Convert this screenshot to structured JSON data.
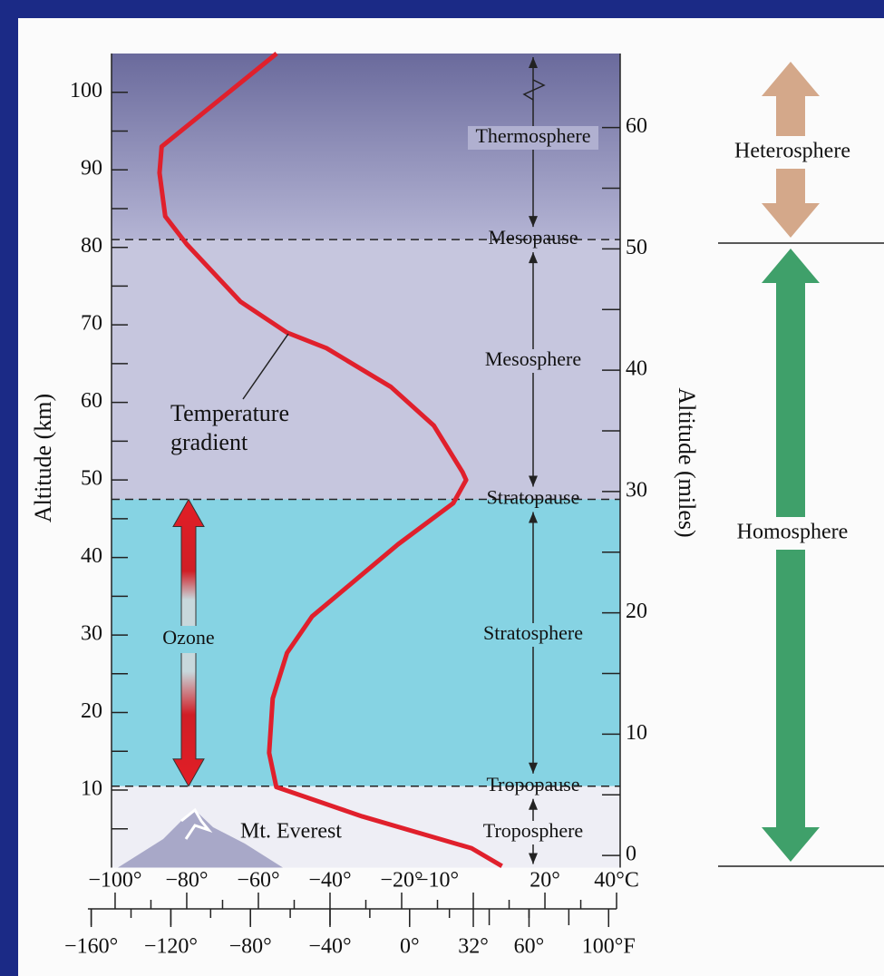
{
  "chart_data": {
    "type": "line",
    "series": [
      {
        "name": "Temperature gradient",
        "color": "#e0202c",
        "x": [
          8,
          -0.5,
          -31,
          -55,
          -57,
          -56,
          -52,
          -45,
          -21,
          -5.6,
          -2,
          -3,
          -11,
          -23,
          -41,
          -52,
          -65,
          -80,
          -86,
          -87.6,
          -87,
          -54.9
        ],
        "values": [
          0.2,
          2.5,
          6.6,
          10.4,
          14.8,
          21.8,
          27.7,
          32.4,
          41.7,
          47,
          50,
          51,
          57,
          62,
          67,
          69,
          73,
          80.4,
          84,
          89.6,
          93,
          105
        ]
      }
    ],
    "xlim": [
      -101,
      41
    ],
    "xticks": [
      {
        "value": -100,
        "label": "−100°"
      },
      {
        "value": -80,
        "label": "−80°"
      },
      {
        "value": -60,
        "label": "−60°"
      },
      {
        "value": -40,
        "label": "−40°"
      },
      {
        "value": -20,
        "label": "−20°"
      },
      {
        "value": -10,
        "label": "−10°"
      },
      {
        "value": 20,
        "label": "20°"
      },
      {
        "value": 40,
        "label": "40°C"
      }
    ],
    "fahrenheit_ticks": [
      {
        "value": -160,
        "label": "−160°"
      },
      {
        "value": -120,
        "label": "−120°"
      },
      {
        "value": -80,
        "label": "−80°"
      },
      {
        "value": -40,
        "label": "−40°"
      },
      {
        "value": 0,
        "label": "0°"
      },
      {
        "value": 32,
        "label": "32°"
      },
      {
        "value": 60,
        "label": "60°"
      },
      {
        "value": 100,
        "label": "100°F"
      }
    ],
    "ylim": [
      0,
      105
    ],
    "yticks": [
      10,
      20,
      30,
      40,
      50,
      60,
      70,
      80,
      90,
      100
    ],
    "y_label": "Altitude (km)",
    "y2lim": [
      -1,
      66.1
    ],
    "y2ticks": [
      0,
      10,
      20,
      30,
      40,
      50,
      60
    ],
    "y2_label": "Altitude (miles)",
    "boundaries": [
      {
        "label": "Mesopause",
        "value": 81
      },
      {
        "label": "Stratopause",
        "value": 47.5
      },
      {
        "label": "Tropopause",
        "value": 10.5
      }
    ],
    "layers": [
      "Thermosphere",
      "Mesosphere",
      "Stratosphere",
      "Troposphere"
    ],
    "spheres": [
      "Heterosphere",
      "Homosphere"
    ],
    "annotations": {
      "ozone": "Ozone",
      "everest": "Mt. Everest"
    }
  }
}
